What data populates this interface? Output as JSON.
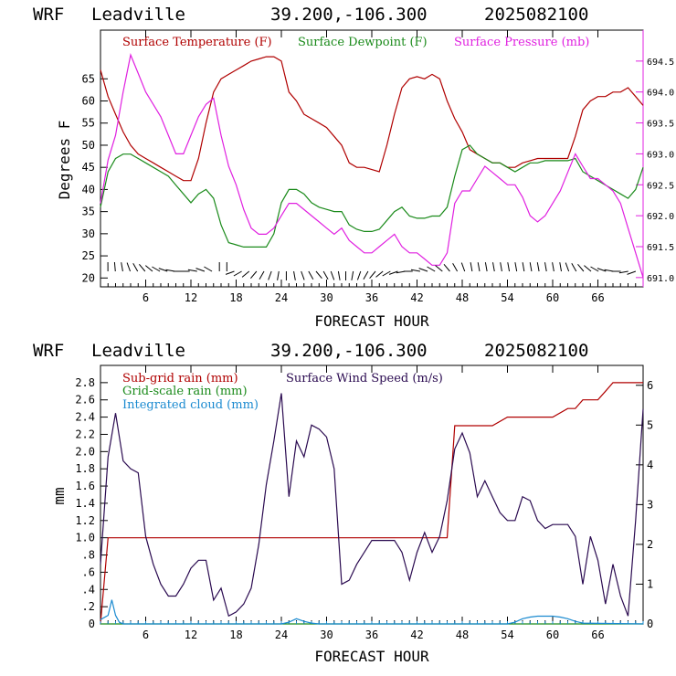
{
  "panels": [
    {
      "header": {
        "model": "WRF",
        "station": "Leadville",
        "coords": "39.200,-106.300",
        "init": "2025082100"
      },
      "legend": [
        "Surface Temperature (F)",
        "Surface Dewpoint (F)",
        "Surface Pressure (mb)"
      ],
      "ylabel": "Degrees F",
      "xlabel": "FORECAST HOUR",
      "x_ticks": [
        "6",
        "12",
        "18",
        "24",
        "30",
        "36",
        "42",
        "48",
        "54",
        "60",
        "66"
      ],
      "y_ticks": [
        "20",
        "25",
        "30",
        "35",
        "40",
        "45",
        "50",
        "55",
        "60",
        "65"
      ],
      "y2_ticks": [
        "691.0",
        "691.5",
        "692.0",
        "692.5",
        "693.0",
        "693.5",
        "694.0",
        "694.5"
      ]
    },
    {
      "header": {
        "model": "WRF",
        "station": "Leadville",
        "coords": "39.200,-106.300",
        "init": "2025082100"
      },
      "legend": [
        "Sub-grid rain (mm)",
        "Surface Wind Speed (m/s)",
        "Grid-scale rain (mm)",
        "Integrated cloud (mm)"
      ],
      "ylabel": "mm",
      "xlabel": "FORECAST HOUR",
      "x_ticks": [
        "6",
        "12",
        "18",
        "24",
        "30",
        "36",
        "42",
        "48",
        "54",
        "60",
        "66"
      ],
      "y_ticks": [
        "0",
        ".2",
        ".4",
        ".6",
        ".8",
        "1.0",
        "1.2",
        "1.4",
        "1.6",
        "1.8",
        "2.0",
        "2.2",
        "2.4",
        "2.6",
        "2.8"
      ],
      "y2_ticks": [
        "0",
        "1",
        "2",
        "3",
        "4",
        "5",
        "6"
      ]
    }
  ],
  "colors": {
    "temperature": "#b00000",
    "dewpoint": "#1a8a1a",
    "pressure": "#e020e0",
    "subgrid_rain": "#b00000",
    "wind_speed": "#2a0a50",
    "gridscale_rain": "#1a8a1a",
    "cloud": "#1a8ad0"
  },
  "chart_data": [
    {
      "type": "line",
      "title": "WRF Leadville 39.200,-106.300 2025082100",
      "xlabel": "FORECAST HOUR",
      "ylabel": "Degrees F",
      "xlim": [
        0,
        72
      ],
      "ylim": [
        18,
        76
      ],
      "y2lim": [
        690.85,
        695.0
      ],
      "series": [
        {
          "name": "Surface Temperature (F)",
          "axis": "left",
          "x": [
            0,
            1,
            2,
            3,
            4,
            5,
            6,
            7,
            8,
            9,
            10,
            11,
            12,
            13,
            14,
            15,
            16,
            17,
            18,
            19,
            20,
            21,
            22,
            23,
            24,
            25,
            26,
            27,
            28,
            29,
            30,
            31,
            32,
            33,
            34,
            35,
            36,
            37,
            38,
            39,
            40,
            41,
            42,
            43,
            44,
            45,
            46,
            47,
            48,
            49,
            50,
            51,
            52,
            53,
            54,
            55,
            56,
            57,
            58,
            59,
            60,
            61,
            62,
            63,
            64,
            65,
            66,
            67,
            68,
            69,
            70,
            71,
            72
          ],
          "y": [
            67,
            61,
            57,
            53,
            50,
            48,
            47,
            46,
            45,
            44,
            43,
            42,
            42,
            47,
            55,
            62,
            65,
            66,
            67,
            68,
            69,
            69.5,
            70,
            70,
            69,
            62,
            60,
            57,
            56,
            55,
            54,
            52,
            50,
            46,
            45,
            45,
            44.5,
            44,
            50,
            57,
            63,
            65,
            65.5,
            65,
            66,
            65,
            60,
            56,
            53,
            49,
            48,
            47,
            46,
            46,
            45,
            45,
            46,
            46.5,
            47,
            47,
            47,
            47,
            47,
            52,
            58,
            60,
            61,
            61,
            62,
            62,
            63,
            61,
            59
          ]
        },
        {
          "name": "Surface Dewpoint (F)",
          "axis": "left",
          "x": [
            0,
            1,
            2,
            3,
            4,
            5,
            6,
            7,
            8,
            9,
            10,
            11,
            12,
            13,
            14,
            15,
            16,
            17,
            18,
            19,
            20,
            21,
            22,
            23,
            24,
            25,
            26,
            27,
            28,
            29,
            30,
            31,
            32,
            33,
            34,
            35,
            36,
            37,
            38,
            39,
            40,
            41,
            42,
            43,
            44,
            45,
            46,
            47,
            48,
            49,
            50,
            51,
            52,
            53,
            54,
            55,
            56,
            57,
            58,
            59,
            60,
            61,
            62,
            63,
            64,
            65,
            66,
            67,
            68,
            69,
            70,
            71,
            72
          ],
          "y": [
            36,
            44,
            47,
            48,
            48,
            47,
            46,
            45,
            44,
            43,
            41,
            39,
            37,
            39,
            40,
            38,
            32,
            28,
            27.5,
            27,
            27,
            27,
            27,
            30,
            37,
            40,
            40,
            39,
            37,
            36,
            35.5,
            35,
            35,
            32,
            31,
            30.5,
            30.5,
            31,
            33,
            35,
            36,
            34,
            33.5,
            33.5,
            34,
            34,
            36,
            43,
            49,
            50,
            48,
            47,
            46,
            46,
            45,
            44,
            45,
            46,
            46,
            46.5,
            46.5,
            46.5,
            46.5,
            47,
            44,
            43,
            42,
            41,
            40,
            39,
            38,
            40,
            45
          ]
        },
        {
          "name": "Surface Pressure (mb)",
          "axis": "right",
          "x": [
            0,
            1,
            2,
            3,
            4,
            5,
            6,
            7,
            8,
            9,
            10,
            11,
            12,
            13,
            14,
            15,
            16,
            17,
            18,
            19,
            20,
            21,
            22,
            23,
            24,
            25,
            26,
            27,
            28,
            29,
            30,
            31,
            32,
            33,
            34,
            35,
            36,
            37,
            38,
            39,
            40,
            41,
            42,
            43,
            44,
            45,
            46,
            47,
            48,
            49,
            50,
            51,
            52,
            53,
            54,
            55,
            56,
            57,
            58,
            59,
            60,
            61,
            62,
            63,
            64,
            65,
            66,
            67,
            68,
            69,
            70,
            71,
            72
          ],
          "y": [
            692.2,
            692.9,
            693.3,
            694.0,
            694.6,
            694.3,
            694.0,
            693.8,
            693.6,
            693.3,
            693.0,
            693.0,
            693.3,
            693.6,
            693.8,
            693.9,
            693.3,
            692.8,
            692.5,
            692.1,
            691.8,
            691.7,
            691.7,
            691.8,
            692.0,
            692.2,
            692.2,
            692.1,
            692.0,
            691.9,
            691.8,
            691.7,
            691.8,
            691.6,
            691.5,
            691.4,
            691.4,
            691.5,
            691.6,
            691.7,
            691.5,
            691.4,
            691.4,
            691.3,
            691.2,
            691.2,
            691.4,
            692.2,
            692.4,
            692.4,
            692.6,
            692.8,
            692.7,
            692.6,
            692.5,
            692.5,
            692.3,
            692.0,
            691.9,
            692.0,
            692.2,
            692.4,
            692.7,
            693.0,
            692.8,
            692.6,
            692.6,
            692.5,
            692.4,
            692.2,
            691.8,
            691.4,
            691.0
          ]
        }
      ],
      "wind_barbs": "row of wind barbs along the bottom of the panel"
    },
    {
      "type": "line",
      "title": "WRF Leadville 39.200,-106.300 2025082100",
      "xlabel": "FORECAST HOUR",
      "ylabel": "mm",
      "xlim": [
        0,
        72
      ],
      "ylim": [
        0,
        3.0
      ],
      "y2lim": [
        0,
        6.5
      ],
      "series": [
        {
          "name": "Sub-grid rain (mm)",
          "axis": "left",
          "x": [
            0,
            1,
            2,
            10,
            20,
            30,
            40,
            46,
            47,
            48,
            52,
            54,
            56,
            58,
            60,
            62,
            63,
            64,
            66,
            67,
            68,
            69,
            70,
            72
          ],
          "y": [
            0,
            1.0,
            1.0,
            1.0,
            1.0,
            1.0,
            1.0,
            1.0,
            2.3,
            2.3,
            2.3,
            2.4,
            2.4,
            2.4,
            2.4,
            2.5,
            2.5,
            2.6,
            2.6,
            2.7,
            2.8,
            2.8,
            2.8,
            2.8
          ]
        },
        {
          "name": "Grid-scale rain (mm)",
          "axis": "left",
          "x": [
            0,
            72
          ],
          "y": [
            0,
            0
          ]
        },
        {
          "name": "Integrated cloud (mm)",
          "axis": "left",
          "x": [
            0,
            1,
            1.5,
            2,
            2.5,
            3,
            24,
            25,
            26,
            27,
            28,
            29,
            54,
            55,
            56,
            57,
            58,
            59,
            60,
            61,
            62,
            63,
            64,
            72
          ],
          "y": [
            0.05,
            0.1,
            0.28,
            0.1,
            0.02,
            0,
            0,
            0.02,
            0.06,
            0.03,
            0.01,
            0,
            0,
            0.02,
            0.06,
            0.08,
            0.09,
            0.09,
            0.09,
            0.08,
            0.06,
            0.03,
            0.01,
            0
          ]
        },
        {
          "name": "Surface Wind Speed (m/s)",
          "axis": "right",
          "x": [
            0,
            1,
            2,
            3,
            4,
            5,
            6,
            7,
            8,
            9,
            10,
            11,
            12,
            13,
            14,
            15,
            16,
            17,
            18,
            19,
            20,
            21,
            22,
            23,
            24,
            25,
            26,
            27,
            28,
            29,
            30,
            31,
            32,
            33,
            34,
            35,
            36,
            37,
            38,
            39,
            40,
            41,
            42,
            43,
            44,
            45,
            46,
            47,
            48,
            49,
            50,
            51,
            52,
            53,
            54,
            55,
            56,
            57,
            58,
            59,
            60,
            61,
            62,
            63,
            64,
            65,
            66,
            67,
            68,
            69,
            70,
            71,
            72
          ],
          "y": [
            1.5,
            4.2,
            5.3,
            4.1,
            3.9,
            3.8,
            2.2,
            1.5,
            1.0,
            0.7,
            0.7,
            1.0,
            1.4,
            1.6,
            1.6,
            0.6,
            0.9,
            0.2,
            0.3,
            0.5,
            0.9,
            2.0,
            3.5,
            4.6,
            5.8,
            3.2,
            4.6,
            4.2,
            5.0,
            4.9,
            4.7,
            3.9,
            1.0,
            1.1,
            1.5,
            1.8,
            2.1,
            2.1,
            2.1,
            2.1,
            1.8,
            1.1,
            1.8,
            2.3,
            1.8,
            2.2,
            3.1,
            4.4,
            4.8,
            4.3,
            3.2,
            3.6,
            3.2,
            2.8,
            2.6,
            2.6,
            3.2,
            3.1,
            2.6,
            2.4,
            2.5,
            2.5,
            2.5,
            2.2,
            1.0,
            2.2,
            1.6,
            0.5,
            1.5,
            0.7,
            0.2,
            2.6,
            5.4
          ]
        }
      ]
    }
  ]
}
